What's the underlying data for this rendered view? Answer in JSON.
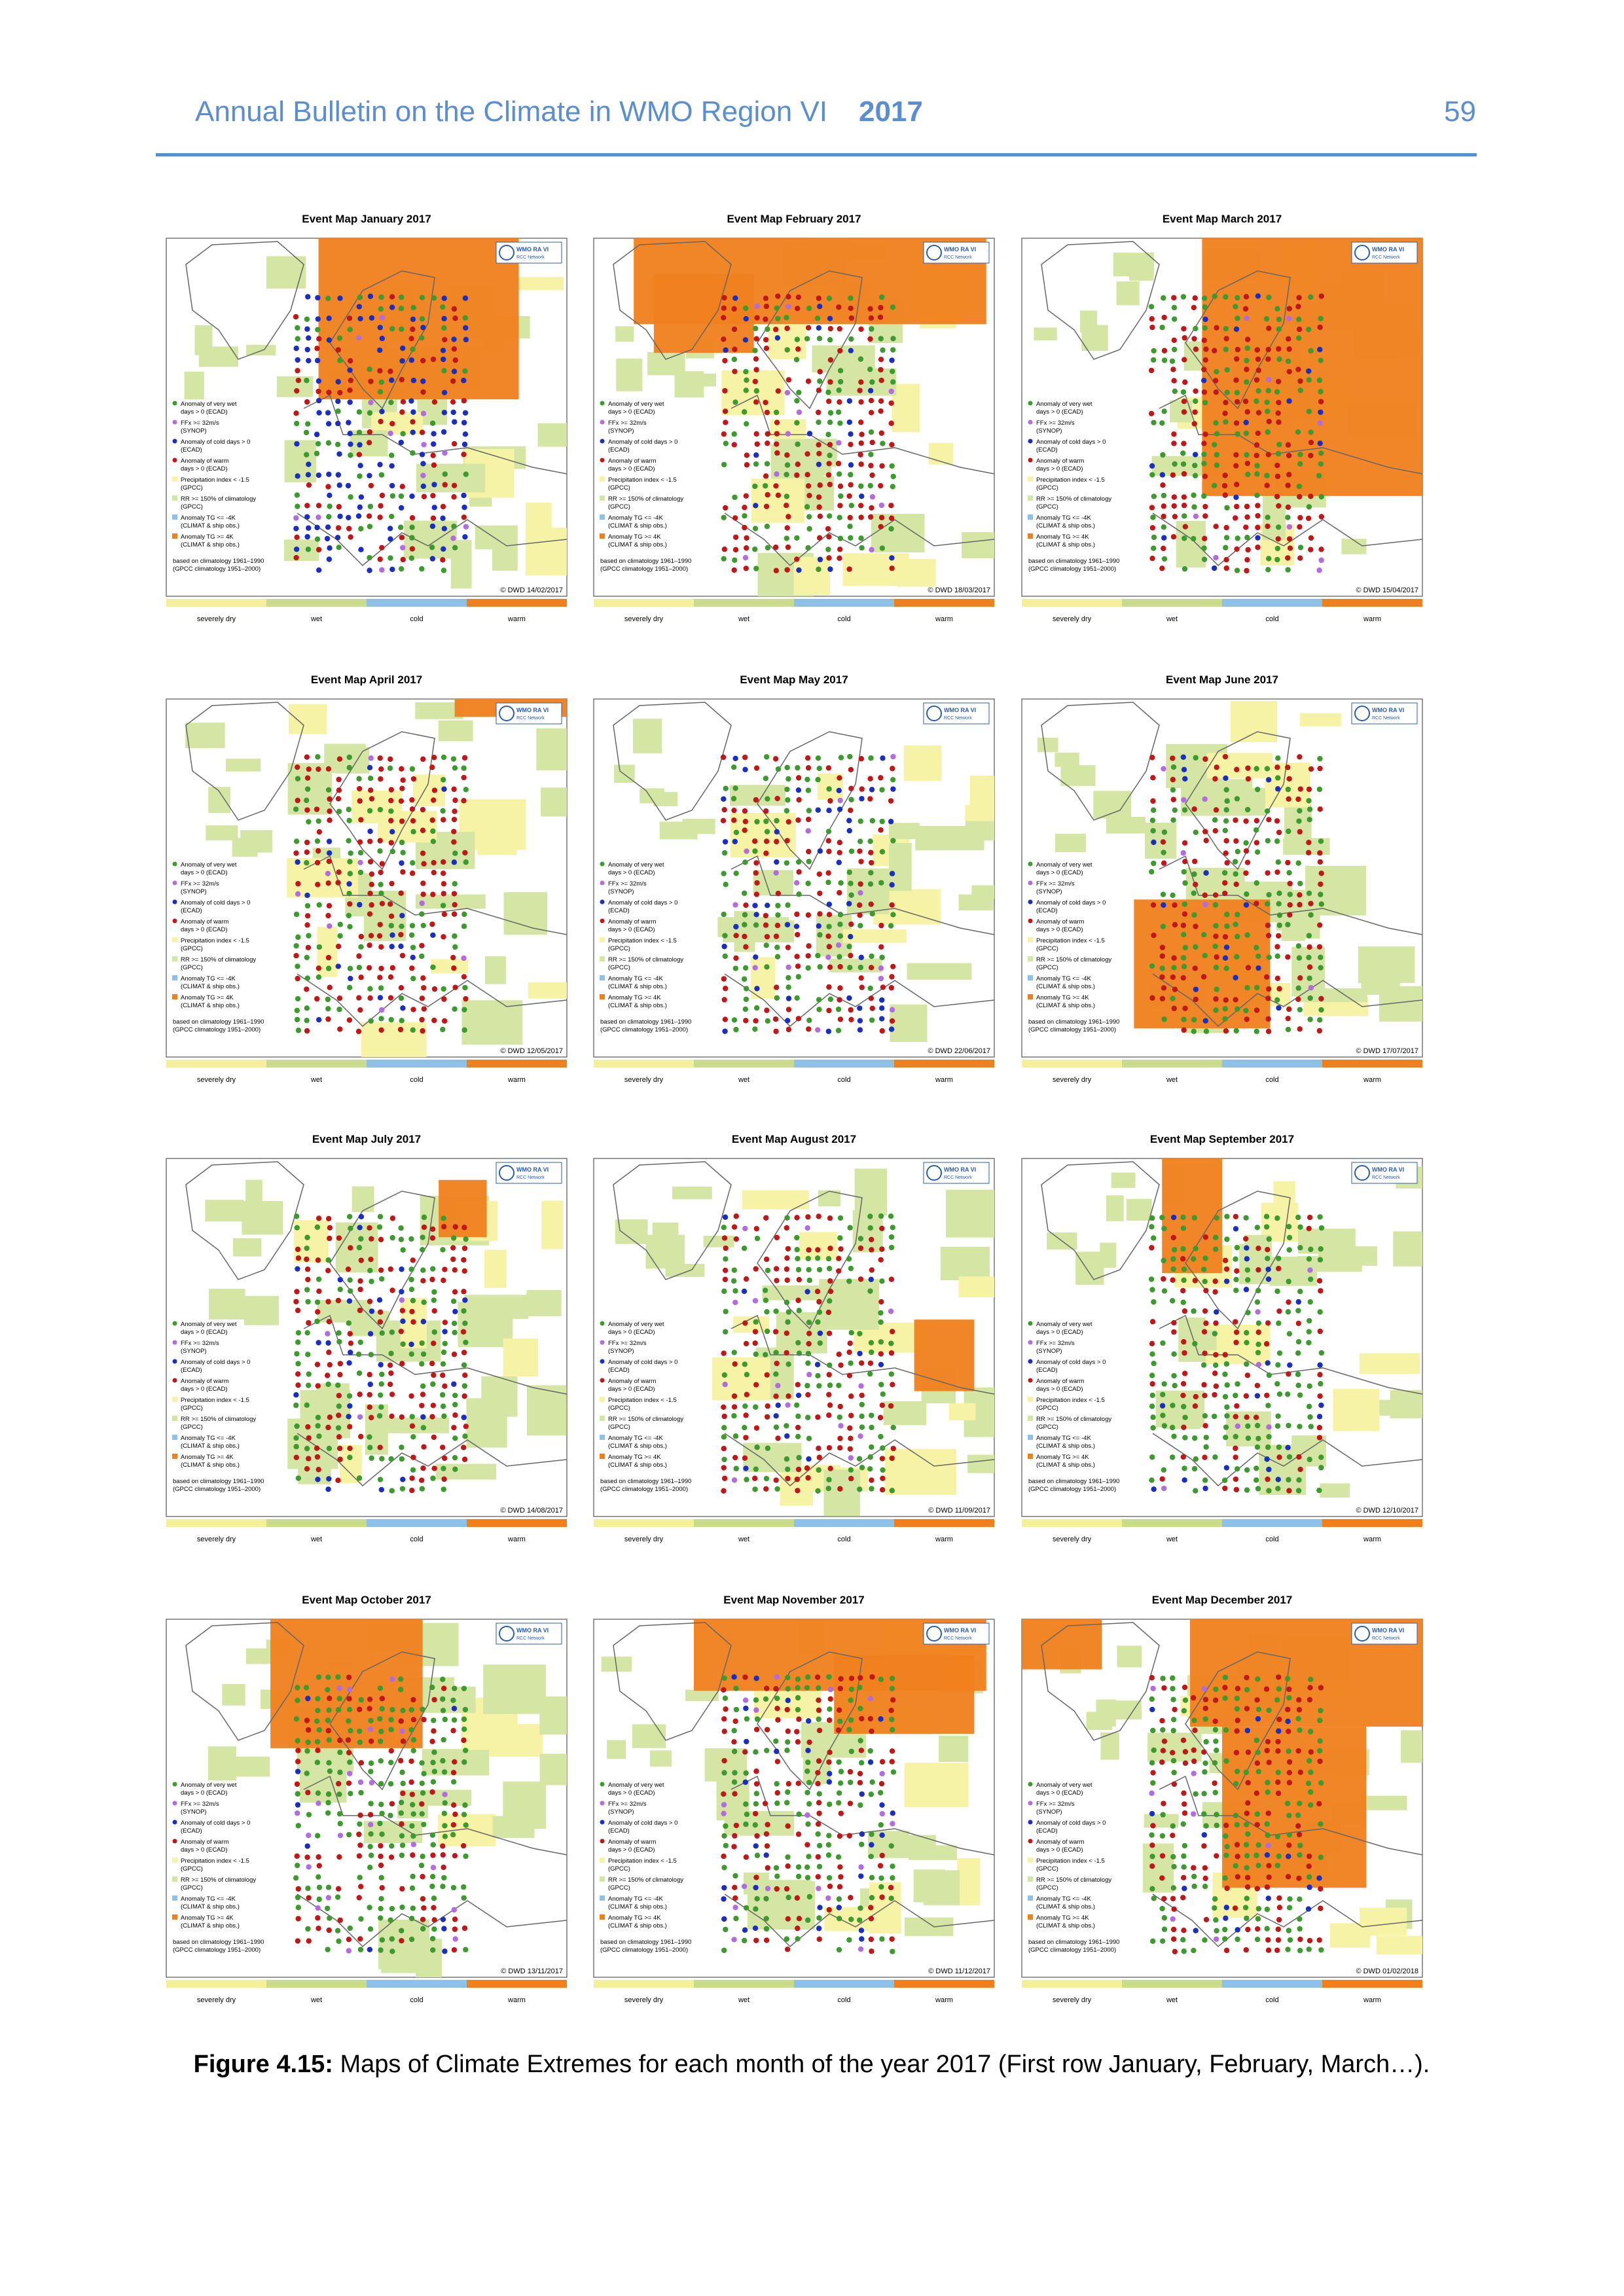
{
  "header": {
    "title": "Annual Bulletin on the Climate in WMO Region VI",
    "year": "2017",
    "page_number": "59"
  },
  "panels": [
    {
      "title": "Event Map January 2017",
      "credit": "© DWD 14/02/2017"
    },
    {
      "title": "Event Map February 2017",
      "credit": "© DWD 18/03/2017"
    },
    {
      "title": "Event Map March 2017",
      "credit": "© DWD 15/04/2017"
    },
    {
      "title": "Event Map April 2017",
      "credit": "© DWD 12/05/2017"
    },
    {
      "title": "Event Map May 2017",
      "credit": "© DWD 22/06/2017"
    },
    {
      "title": "Event Map June 2017",
      "credit": "© DWD 17/07/2017"
    },
    {
      "title": "Event Map July 2017",
      "credit": "© DWD 14/08/2017"
    },
    {
      "title": "Event Map August 2017",
      "credit": "© DWD 11/09/2017"
    },
    {
      "title": "Event Map September 2017",
      "credit": "© DWD 12/10/2017"
    },
    {
      "title": "Event Map October 2017",
      "credit": "© DWD 13/11/2017"
    },
    {
      "title": "Event Map November 2017",
      "credit": "© DWD 11/12/2017"
    },
    {
      "title": "Event Map December 2017",
      "credit": "© DWD 01/02/2018"
    }
  ],
  "map_logo": {
    "name": "WMO RA VI",
    "network": "RCC Network"
  },
  "map_legend": {
    "items": [
      [
        "Anomaly of very wet",
        "days > 0 (ECAD)"
      ],
      [
        "FFx >= 32m/s",
        "(SYNOP)"
      ],
      [
        "Anomaly of cold days > 0",
        "(ECAD)"
      ],
      [
        "Anomaly of warm",
        "days > 0 (ECAD)"
      ],
      [
        "Precipitation index < -1.5",
        "(GPCC)"
      ],
      [
        "RR >= 150% of climatology",
        "(GPCC)"
      ],
      [
        "Anomaly TG <= -4K",
        "(CLIMAT & ship obs.)"
      ],
      [
        "Anomaly TG >= 4K",
        "(CLIMAT & ship obs.)"
      ]
    ],
    "note": [
      "based on climatology 1961–1990",
      "(GPCC climatology 1951–2000)"
    ]
  },
  "color_bar": [
    "severely dry",
    "wet",
    "cold",
    "warm"
  ],
  "caption": {
    "label": "Figure 4.15:",
    "text": "Maps of Climate Extremes for each month of the year 2017 (First row January, February, March…)."
  }
}
